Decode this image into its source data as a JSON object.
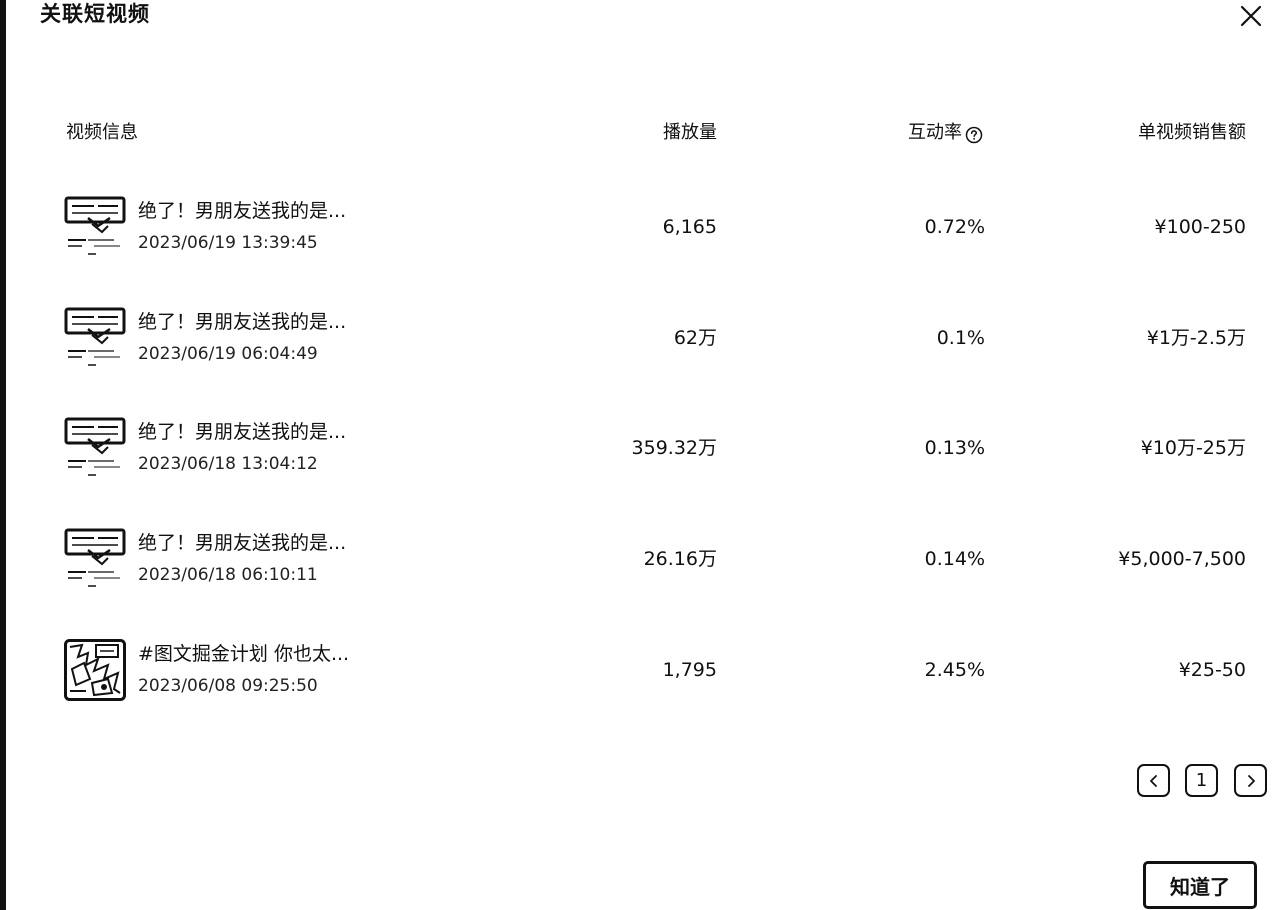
{
  "dialog": {
    "title": "关联短视频",
    "close_icon": "close-icon"
  },
  "table": {
    "headers": {
      "video_info": "视频信息",
      "plays": "播放量",
      "interaction_rate": "互动率",
      "sales": "单视频销售额"
    },
    "help_icon": "question-circle-icon",
    "rows": [
      {
        "title": "绝了！男朋友送我的是...",
        "date": "2023/06/19 13:39:45",
        "plays": "6,165",
        "rate": "0.72%",
        "sales": "¥100-250",
        "thumb": "screen-thumbnail"
      },
      {
        "title": "绝了！男朋友送我的是...",
        "date": "2023/06/19 06:04:49",
        "plays": "62万",
        "rate": "0.1%",
        "sales": "¥1万-2.5万",
        "thumb": "screen-thumbnail"
      },
      {
        "title": "绝了！男朋友送我的是...",
        "date": "2023/06/18 13:04:12",
        "plays": "359.32万",
        "rate": "0.13%",
        "sales": "¥10万-25万",
        "thumb": "screen-thumbnail"
      },
      {
        "title": "绝了！男朋友送我的是...",
        "date": "2023/06/18 06:10:11",
        "plays": "26.16万",
        "rate": "0.14%",
        "sales": "¥5,000-7,500",
        "thumb": "screen-thumbnail"
      },
      {
        "title": "#图文掘金计划 你也太...",
        "date": "2023/06/08 09:25:50",
        "plays": "1,795",
        "rate": "2.45%",
        "sales": "¥25-50",
        "thumb": "collage-thumbnail"
      }
    ]
  },
  "pagination": {
    "prev_icon": "chevron-left-icon",
    "current_page": "1",
    "next_icon": "chevron-right-icon"
  },
  "footer": {
    "ok_label": "知道了"
  }
}
